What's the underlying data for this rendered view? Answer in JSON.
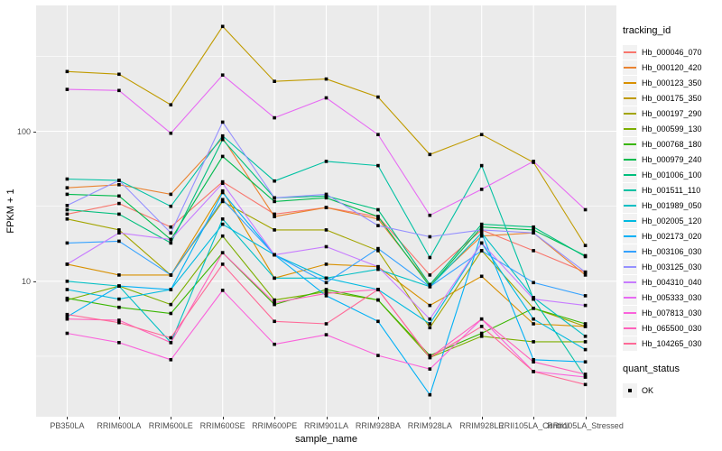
{
  "colors": {
    "panel_bg": "#EBEBEB",
    "grid": "#FFFFFF",
    "axis_text": "#4D4D4D",
    "axis_title": "#000000",
    "point": "#000000",
    "legend_key_bg": "#F2F2F2"
  },
  "chart_data": {
    "type": "line",
    "title": "",
    "xlabel": "sample_name",
    "ylabel": "FPKM + 1",
    "y_scale": "log10",
    "ylim": [
      1.25,
      690
    ],
    "y_ticks": [
      100,
      10
    ],
    "y_tick_labels": [
      "100",
      "10"
    ],
    "y_minor_gridlines": [
      316.2,
      31.62,
      3.162
    ],
    "grid": "on",
    "legend_position": "right",
    "legend_title": "tracking_id",
    "point_legend": {
      "title": "quant_status",
      "label": "OK"
    },
    "x_categories": [
      "PB350LA",
      "RRIM600LA",
      "RRIM600LE",
      "RRIM600SE",
      "RRIM600PE",
      "RRIM901LA",
      "RRIM928BA",
      "RRIM928LA",
      "RRIM928LE",
      "RRII105LA_Control",
      "RRII105LA_Stressed"
    ],
    "series": [
      {
        "name": "Hb_000046_070",
        "color": "#F8766D",
        "values": [
          28,
          33,
          23,
          46,
          28,
          31,
          27,
          11,
          22,
          16,
          11.5
        ]
      },
      {
        "name": "Hb_000120_420",
        "color": "#EA8331",
        "values": [
          42,
          44,
          38,
          90,
          27,
          31,
          26,
          9.5,
          20,
          21,
          11
        ]
      },
      {
        "name": "Hb_000123_350",
        "color": "#D89000",
        "values": [
          13,
          11,
          11,
          40,
          10.5,
          13,
          12.5,
          6.9,
          10.8,
          5.2,
          5.0
        ]
      },
      {
        "name": "Hb_000175_350",
        "color": "#C09B00",
        "values": [
          250,
          240,
          150,
          500,
          215,
          223,
          169,
          70,
          95,
          62,
          17.3
        ]
      },
      {
        "name": "Hb_000197_290",
        "color": "#A3A500",
        "values": [
          26,
          22,
          11,
          34,
          22,
          22,
          16,
          4.9,
          16,
          6.6,
          5.0
        ]
      },
      {
        "name": "Hb_000599_130",
        "color": "#7CAE00",
        "values": [
          7.5,
          9.3,
          7.0,
          20,
          7.5,
          8.5,
          7.5,
          3.1,
          4.3,
          3.95,
          3.95
        ]
      },
      {
        "name": "Hb_000768_180",
        "color": "#39B600",
        "values": [
          7.7,
          6.7,
          6.1,
          15.5,
          7.0,
          8.8,
          7.5,
          3.2,
          4.5,
          6.6,
          5.2
        ]
      },
      {
        "name": "Hb_000979_240",
        "color": "#00BB4E",
        "values": [
          38,
          37,
          19,
          68,
          34,
          36,
          27,
          9.2,
          23,
          22,
          14.8
        ]
      },
      {
        "name": "Hb_001006_100",
        "color": "#00BF7D",
        "values": [
          30,
          28,
          18,
          88,
          36,
          37,
          30,
          9.5,
          24,
          23,
          14.6
        ]
      },
      {
        "name": "Hb_001511_110",
        "color": "#00C1A3",
        "values": [
          48,
          47,
          31.6,
          93,
          46.6,
          63,
          59,
          14.4,
          59,
          7.6,
          2.3
        ]
      },
      {
        "name": "Hb_001989_050",
        "color": "#00BFC4",
        "values": [
          10,
          9.3,
          3.9,
          26,
          10.5,
          10.5,
          12,
          9.2,
          21,
          7.8,
          4.3
        ]
      },
      {
        "name": "Hb_002005_120",
        "color": "#00BAE0",
        "values": [
          8.8,
          7.6,
          8.8,
          24,
          15,
          10.5,
          8.8,
          5.2,
          18,
          5.6,
          3.5
        ]
      },
      {
        "name": "Hb_002173_020",
        "color": "#00B0F6",
        "values": [
          5.8,
          9.3,
          8.8,
          39,
          15,
          8.0,
          5.4,
          1.75,
          21,
          3.0,
          2.9
        ]
      },
      {
        "name": "Hb_003106_030",
        "color": "#35A2FF",
        "values": [
          18,
          18.5,
          11,
          35,
          15,
          9.8,
          16.5,
          9.2,
          16,
          9.8,
          8.0
        ]
      },
      {
        "name": "Hb_003125_030",
        "color": "#9590FF",
        "values": [
          32,
          47,
          21,
          115,
          36,
          38,
          23.5,
          19.8,
          22,
          21,
          11.5
        ]
      },
      {
        "name": "Hb_004310_040",
        "color": "#C77CFF",
        "values": [
          13,
          21,
          19,
          45,
          15,
          17,
          12.5,
          5.6,
          18,
          7.6,
          6.9
        ]
      },
      {
        "name": "Hb_005333_030",
        "color": "#E76BF3",
        "values": [
          190,
          187,
          97,
          237,
          123,
          167,
          95,
          27.5,
          41,
          63,
          30
        ]
      },
      {
        "name": "Hb_007813_030",
        "color": "#FA62DB",
        "values": [
          4.5,
          3.9,
          3.0,
          8.7,
          3.8,
          4.4,
          3.2,
          2.6,
          5.6,
          2.5,
          2.3
        ]
      },
      {
        "name": "Hb_065500_030",
        "color": "#FF62BC",
        "values": [
          5.6,
          5.5,
          3.9,
          15.5,
          7.2,
          8.3,
          8.8,
          3.1,
          5.6,
          2.9,
          2.4
        ]
      },
      {
        "name": "Hb_104265_030",
        "color": "#FF6A98",
        "values": [
          6.0,
          5.3,
          4.2,
          13,
          5.4,
          5.2,
          8.8,
          3.1,
          5.0,
          2.5,
          2.05
        ]
      }
    ]
  }
}
